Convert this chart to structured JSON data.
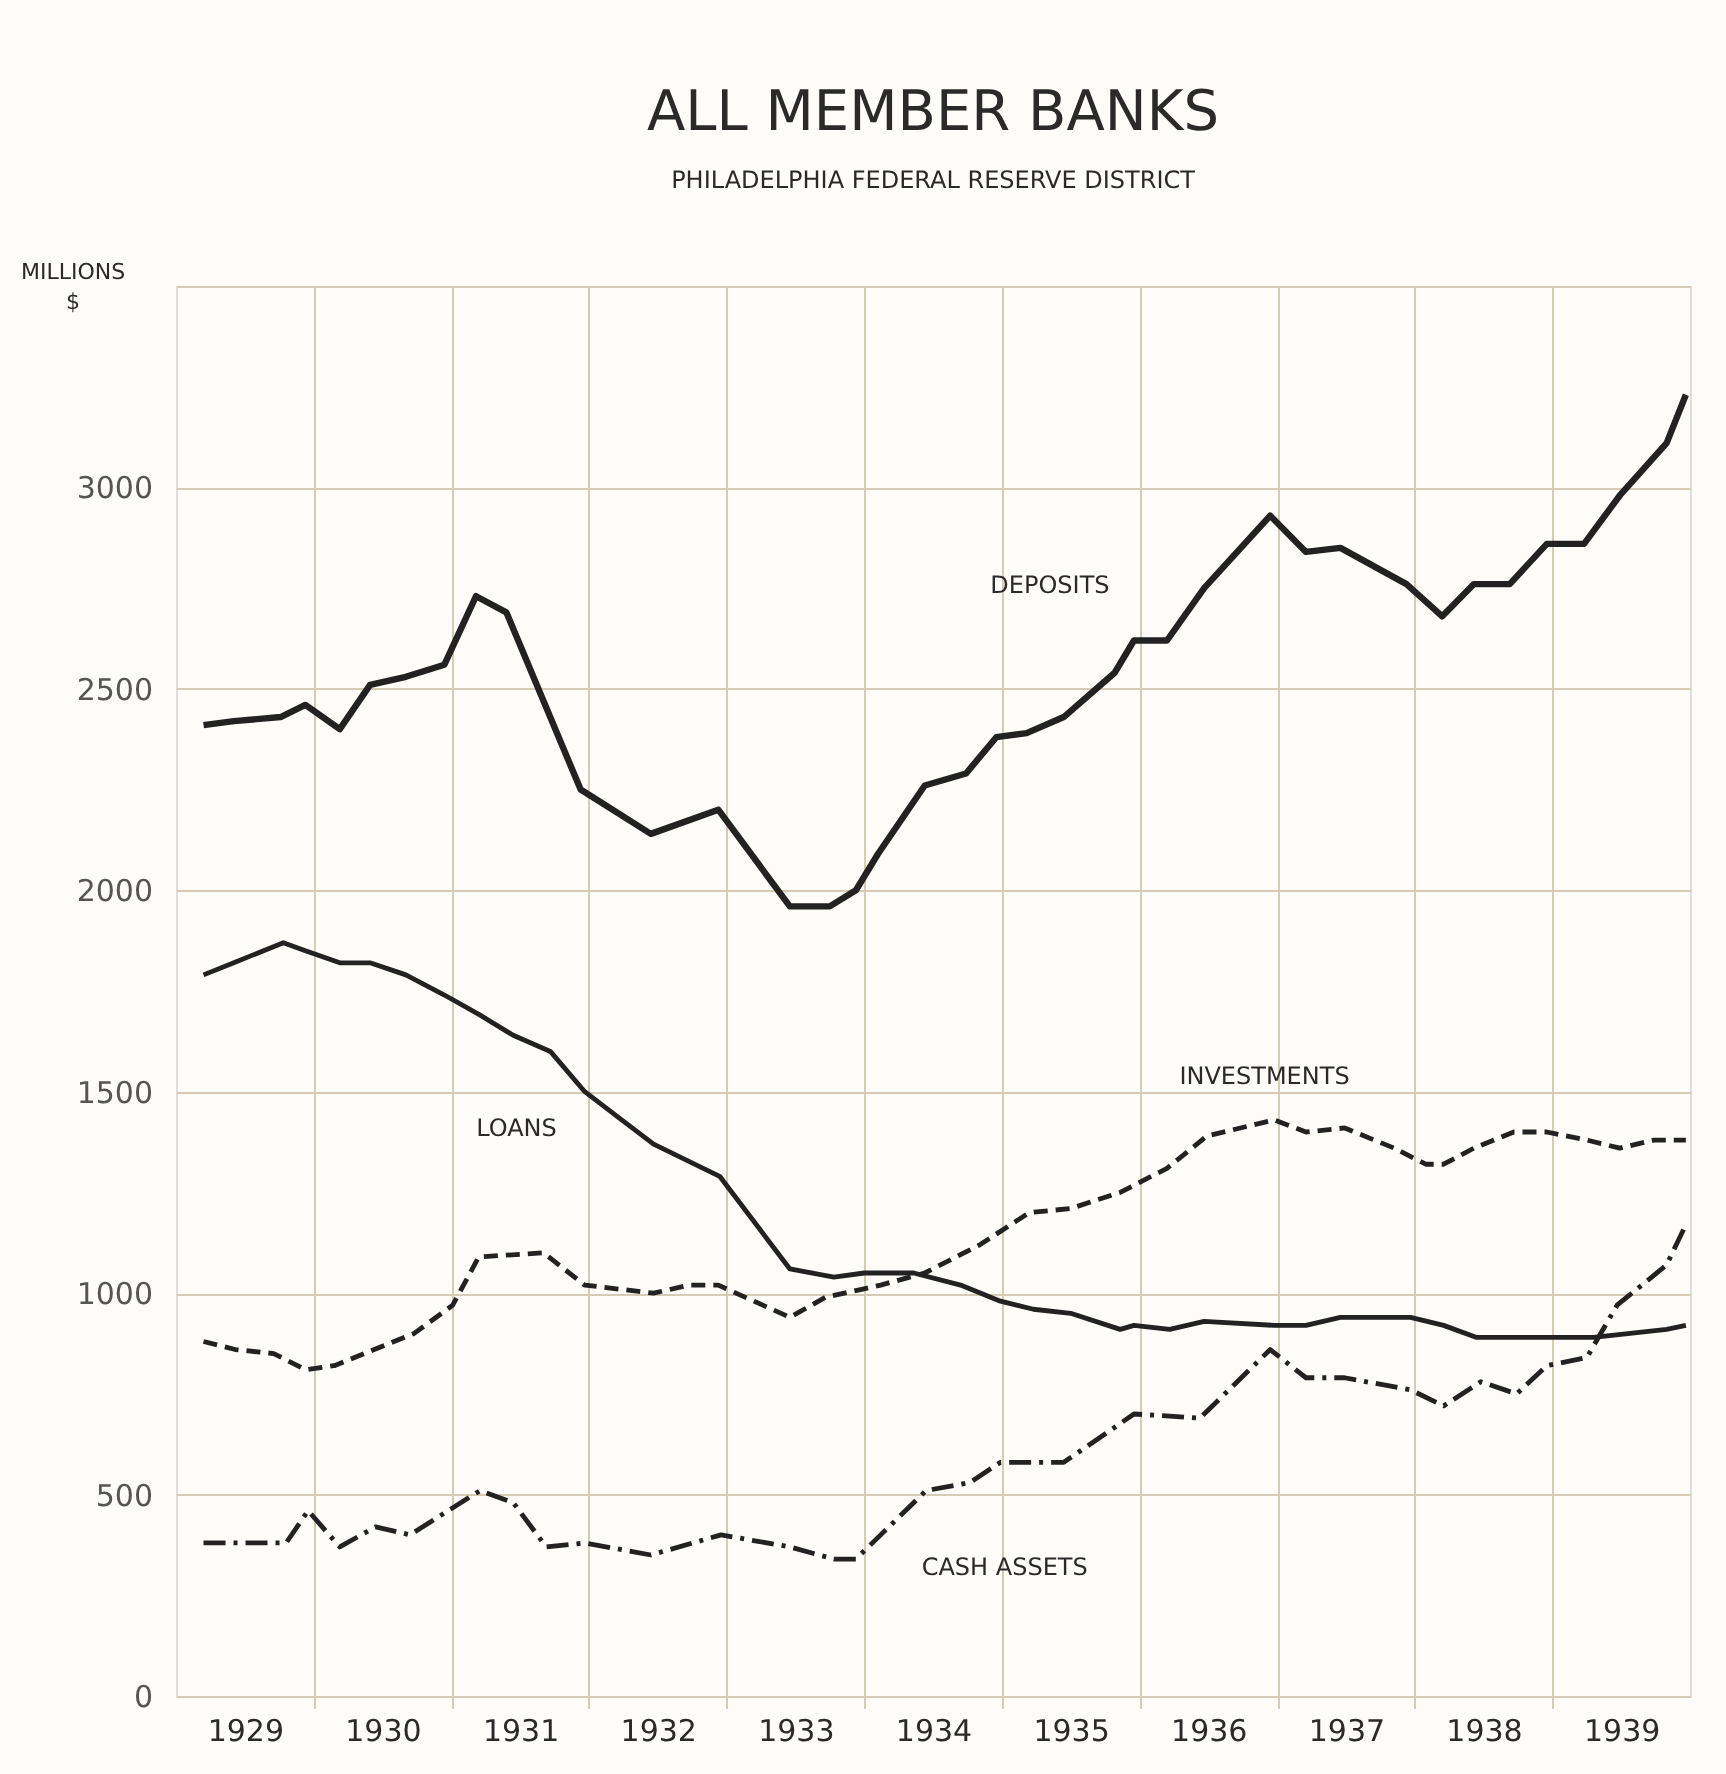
{
  "chart_data": {
    "type": "line",
    "title": "ALL MEMBER BANKS",
    "subtitle": "PHILADELPHIA FEDERAL RESERVE DISTRICT",
    "ylabel": "MILLIONS\n$",
    "xlim": [
      1929,
      1940
    ],
    "ylim": [
      0,
      3500
    ],
    "xticks": [
      {
        "value": 1929.5,
        "label": "1929"
      },
      {
        "value": 1930,
        "label": null
      },
      {
        "value": 1930.5,
        "label": "1930"
      },
      {
        "value": 1931,
        "label": null
      },
      {
        "value": 1931.5,
        "label": "1931"
      },
      {
        "value": 1932,
        "label": null
      },
      {
        "value": 1932.5,
        "label": "1932"
      },
      {
        "value": 1933,
        "label": null
      },
      {
        "value": 1933.5,
        "label": "1933"
      },
      {
        "value": 1934,
        "label": null
      },
      {
        "value": 1934.5,
        "label": "1934"
      },
      {
        "value": 1935,
        "label": null
      },
      {
        "value": 1935.5,
        "label": "1935"
      },
      {
        "value": 1936,
        "label": null
      },
      {
        "value": 1936.5,
        "label": "1936"
      },
      {
        "value": 1937,
        "label": null
      },
      {
        "value": 1937.5,
        "label": "1937"
      },
      {
        "value": 1938,
        "label": null
      },
      {
        "value": 1938.5,
        "label": "1938"
      },
      {
        "value": 1939,
        "label": null
      },
      {
        "value": 1939.5,
        "label": "1939"
      }
    ],
    "yticks": [
      0,
      500,
      1000,
      1500,
      2000,
      2500,
      3000,
      {
        "value": 3500,
        "label": null
      }
    ],
    "grid": true,
    "legend": false,
    "marker": "none",
    "series": [
      {
        "name": "DEPOSITS",
        "color": "#222222",
        "line_style": "solid",
        "x": [
          1929.2,
          1929.42,
          1929.76,
          1929.94,
          1930.19,
          1930.41,
          1930.67,
          1930.95,
          1931.18,
          1931.4,
          1931.94,
          1932.45,
          1932.94,
          1933.46,
          1933.75,
          1933.94,
          1934.1,
          1934.44,
          1934.74,
          1934.96,
          1935.18,
          1935.45,
          1935.82,
          1935.96,
          1936.2,
          1936.47,
          1936.95,
          1937.21,
          1937.46,
          1937.94,
          1938.2,
          1938.43,
          1938.69,
          1938.96,
          1939.23,
          1939.49,
          1939.83,
          1939.97
        ],
        "values": [
          2410,
          2420,
          2430,
          2460,
          2400,
          2510,
          2530,
          2560,
          2730,
          2690,
          2250,
          2140,
          2200,
          1960,
          1960,
          2000,
          2090,
          2260,
          2290,
          2380,
          2390,
          2430,
          2540,
          2620,
          2620,
          2750,
          2930,
          2840,
          2850,
          2760,
          2680,
          2760,
          2760,
          2860,
          2860,
          2980,
          3110,
          3230
        ]
      },
      {
        "name": "LOANS",
        "color": "#222222",
        "line_style": "solid",
        "x": [
          1929.2,
          1929.42,
          1929.78,
          1929.94,
          1930.19,
          1930.41,
          1930.67,
          1930.95,
          1931.21,
          1931.45,
          1931.72,
          1931.97,
          1932.2,
          1932.47,
          1932.95,
          1933.46,
          1933.78,
          1934.0,
          1934.12,
          1934.36,
          1934.7,
          1934.99,
          1935.23,
          1935.5,
          1935.86,
          1935.96,
          1936.22,
          1936.47,
          1936.98,
          1937.21,
          1937.46,
          1937.97,
          1938.21,
          1938.45,
          1938.72,
          1938.99,
          1939.3,
          1939.83,
          1939.97
        ],
        "values": [
          1790,
          1820,
          1870,
          1850,
          1820,
          1820,
          1790,
          1740,
          1690,
          1640,
          1600,
          1500,
          1440,
          1370,
          1290,
          1060,
          1040,
          1050,
          1050,
          1050,
          1020,
          980,
          960,
          950,
          910,
          920,
          910,
          930,
          920,
          920,
          940,
          940,
          920,
          890,
          890,
          890,
          890,
          910,
          920
        ]
      },
      {
        "name": "INVESTMENTS",
        "color": "#222222",
        "line_style": "dashed",
        "x": [
          1929.2,
          1929.43,
          1929.71,
          1929.94,
          1930.15,
          1930.44,
          1930.73,
          1931.01,
          1931.2,
          1931.67,
          1931.97,
          1932.47,
          1932.73,
          1932.94,
          1933.46,
          1933.72,
          1933.99,
          1934.12,
          1934.44,
          1934.84,
          1935.2,
          1935.5,
          1935.86,
          1936.2,
          1936.49,
          1936.98,
          1937.21,
          1937.49,
          1937.85,
          1938.08,
          1938.21,
          1938.43,
          1938.72,
          1938.96,
          1939.25,
          1939.49,
          1939.74,
          1939.97
        ],
        "values": [
          880,
          860,
          850,
          810,
          820,
          860,
          900,
          970,
          1090,
          1100,
          1020,
          1000,
          1020,
          1020,
          940,
          990,
          1010,
          1020,
          1050,
          1120,
          1200,
          1210,
          1250,
          1310,
          1390,
          1430,
          1400,
          1410,
          1360,
          1320,
          1320,
          1360,
          1400,
          1400,
          1380,
          1360,
          1380,
          1380
        ]
      },
      {
        "name": "CASH ASSETS",
        "color": "#222222",
        "line_style": "dashdot",
        "x": [
          1929.2,
          1929.42,
          1929.8,
          1929.96,
          1930.19,
          1930.45,
          1930.7,
          1931.21,
          1931.45,
          1931.69,
          1931.97,
          1932.45,
          1932.96,
          1933.46,
          1933.78,
          1933.94,
          1934.12,
          1934.45,
          1934.77,
          1934.99,
          1935.45,
          1935.96,
          1936.44,
          1936.95,
          1937.21,
          1937.49,
          1937.97,
          1938.21,
          1938.48,
          1938.74,
          1938.96,
          1939.25,
          1939.47,
          1939.83,
          1939.97
        ],
        "values": [
          380,
          380,
          380,
          460,
          370,
          420,
          400,
          510,
          480,
          370,
          380,
          350,
          400,
          370,
          340,
          340,
          400,
          510,
          530,
          580,
          580,
          700,
          690,
          860,
          790,
          790,
          760,
          720,
          780,
          750,
          820,
          840,
          970,
          1070,
          1170
        ]
      }
    ]
  }
}
